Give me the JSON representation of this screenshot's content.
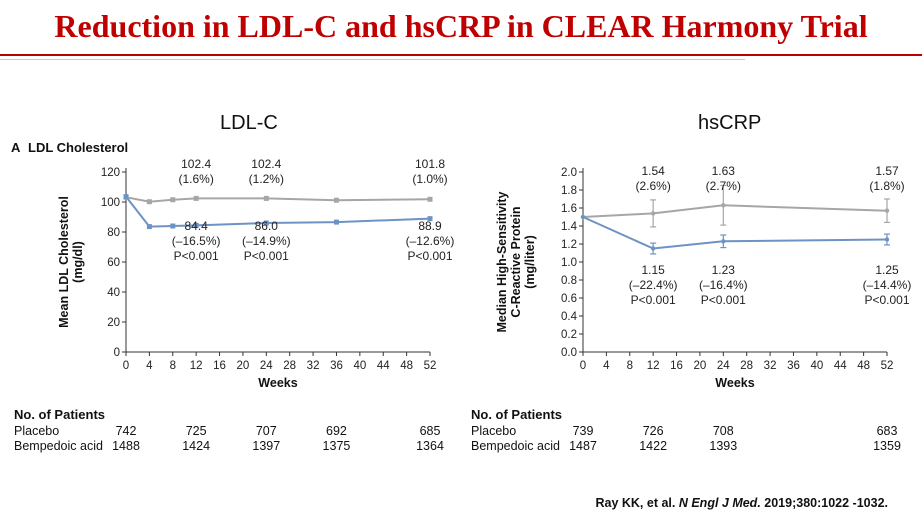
{
  "slide": {
    "title": "Reduction in LDL-C and hsCRP in CLEAR Harmony Trial",
    "citation_authors": "Ray KK, et al.",
    "citation_journal": "N Engl J Med.",
    "citation_ref": "2019;380:1022 -1032."
  },
  "colors": {
    "title": "#c00000",
    "placebo": "#a6a6a6",
    "bempedoic": "#6d93c5"
  },
  "chart_data": [
    {
      "type": "line",
      "heading": "LDL-C",
      "panel_label": "A",
      "title": "LDL Cholesterol",
      "xlabel": "Weeks",
      "ylabel": "Mean LDL Cholesterol (mg/dl)",
      "xlim": [
        0,
        52
      ],
      "ylim": [
        0,
        120
      ],
      "x_ticks": [
        "0",
        "4",
        "8",
        "12",
        "16",
        "20",
        "24",
        "28",
        "32",
        "36",
        "40",
        "44",
        "48",
        "52"
      ],
      "y_ticks": [
        "0",
        "20",
        "40",
        "60",
        "80",
        "100",
        "120"
      ],
      "series": [
        {
          "name": "Placebo",
          "x": [
            0,
            4,
            8,
            12,
            24,
            36,
            52
          ],
          "y": [
            103.2,
            100.2,
            101.5,
            102.4,
            102.4,
            101.2,
            101.8
          ]
        },
        {
          "name": "Bempedoic acid",
          "x": [
            0,
            4,
            8,
            12,
            24,
            36,
            52
          ],
          "y": [
            103.6,
            83.6,
            84.0,
            84.4,
            86.0,
            86.6,
            88.9
          ]
        }
      ],
      "annotations_above": [
        {
          "x": 12,
          "lines": [
            "102.4",
            "(1.6%)"
          ]
        },
        {
          "x": 24,
          "lines": [
            "102.4",
            "(1.2%)"
          ]
        },
        {
          "x": 52,
          "lines": [
            "101.8",
            "(1.0%)"
          ]
        }
      ],
      "annotations_below": [
        {
          "x": 12,
          "lines": [
            "84.4",
            "(–16.5%)",
            "P<0.001"
          ]
        },
        {
          "x": 24,
          "lines": [
            "86.0",
            "(–14.9%)",
            "P<0.001"
          ]
        },
        {
          "x": 52,
          "lines": [
            "88.9",
            "(–12.6%)",
            "P<0.001"
          ]
        }
      ],
      "patients": {
        "header": "No. of Patients",
        "rows": [
          {
            "label": "Placebo",
            "values": [
              "742",
              "725",
              "707",
              "692",
              "685"
            ]
          },
          {
            "label": "Bempedoic acid",
            "values": [
              "1488",
              "1424",
              "1397",
              "1375",
              "1364"
            ]
          }
        ]
      }
    },
    {
      "type": "line",
      "heading": "hsCRP",
      "xlabel": "Weeks",
      "ylabel": "Median High-Sensitivity C-Reactive Protein (mg/liter)",
      "xlim": [
        0,
        52
      ],
      "ylim": [
        0,
        2.0
      ],
      "x_ticks": [
        "0",
        "4",
        "8",
        "12",
        "16",
        "20",
        "24",
        "28",
        "32",
        "36",
        "40",
        "44",
        "48",
        "52"
      ],
      "y_ticks": [
        "0.0",
        "0.2",
        "0.4",
        "0.6",
        "0.8",
        "1.0",
        "1.2",
        "1.4",
        "1.6",
        "1.8",
        "2.0"
      ],
      "series": [
        {
          "name": "Placebo",
          "x": [
            0,
            12,
            24,
            52
          ],
          "y": [
            1.5,
            1.54,
            1.63,
            1.57
          ],
          "err": [
            0,
            0.15,
            0.22,
            0.13
          ]
        },
        {
          "name": "Bempedoic acid",
          "x": [
            0,
            12,
            24,
            52
          ],
          "y": [
            1.5,
            1.15,
            1.23,
            1.25
          ],
          "err": [
            0,
            0.06,
            0.07,
            0.06
          ]
        }
      ],
      "annotations_above": [
        {
          "x": 12,
          "lines": [
            "1.54",
            "(2.6%)"
          ]
        },
        {
          "x": 24,
          "lines": [
            "1.63",
            "(2.7%)"
          ]
        },
        {
          "x": 52,
          "lines": [
            "1.57",
            "(1.8%)"
          ]
        }
      ],
      "annotations_below": [
        {
          "x": 12,
          "lines": [
            "1.15",
            "(–22.4%)",
            "P<0.001"
          ]
        },
        {
          "x": 24,
          "lines": [
            "1.23",
            "(–16.4%)",
            "P<0.001"
          ]
        },
        {
          "x": 52,
          "lines": [
            "1.25",
            "(–14.4%)",
            "P<0.001"
          ]
        }
      ],
      "patients": {
        "header": "No. of Patients",
        "rows": [
          {
            "label": "Placebo",
            "values": [
              "739",
              "726",
              "708",
              "683"
            ]
          },
          {
            "label": "Bempedoic acid",
            "values": [
              "1487",
              "1422",
              "1393",
              "1359"
            ]
          }
        ]
      }
    }
  ]
}
